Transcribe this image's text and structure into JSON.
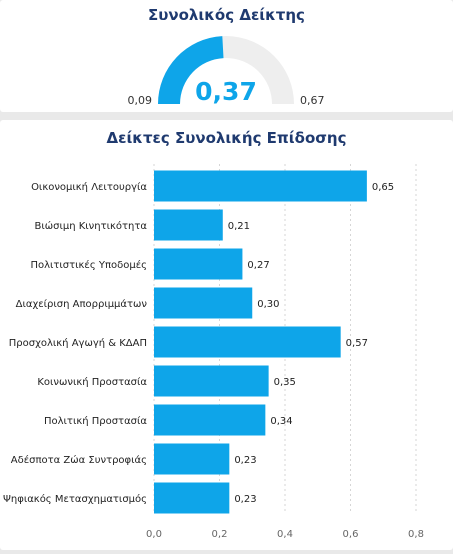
{
  "gauge": {
    "title": "Συνολικός Δείκτης",
    "value": 0.37,
    "value_label": "0,37",
    "min": 0.09,
    "min_label": "0,09",
    "max": 0.67,
    "max_label": "0,67",
    "fill_color": "#0ea5e9",
    "track_color": "#eeeeee",
    "value_color": "#0ea5e9"
  },
  "chart_data": {
    "type": "bar",
    "orientation": "horizontal",
    "title": "Δείκτες Συνολικής Επίδοσης",
    "xlabel": "",
    "ylabel": "",
    "categories": [
      "Οικονομική Λειτουργία",
      "Βιώσιμη Κινητικότητα",
      "Πολιτιστικές Υποδομές",
      "Διαχείριση Απορριμμάτων",
      "Προσχολική Αγωγή & ΚΔΑΠ",
      "Κοινωνική Προστασία",
      "Πολιτική Προστασία",
      "Αδέσποτα Ζώα Συντροφιάς",
      "Ψηφιακός Μετασχηματισμός"
    ],
    "values": [
      0.65,
      0.21,
      0.27,
      0.3,
      0.57,
      0.35,
      0.34,
      0.23,
      0.23
    ],
    "value_labels": [
      "0,65",
      "0,21",
      "0,27",
      "0,30",
      "0,57",
      "0,35",
      "0,34",
      "0,23",
      "0,23"
    ],
    "xlim": [
      0,
      0.8
    ],
    "ticks": [
      0,
      0.2,
      0.4,
      0.6,
      0.8
    ],
    "tick_labels": [
      "0,0",
      "0,2",
      "0,4",
      "0,6",
      "0,8"
    ],
    "bar_color": "#0ea5e9",
    "grid": true
  }
}
